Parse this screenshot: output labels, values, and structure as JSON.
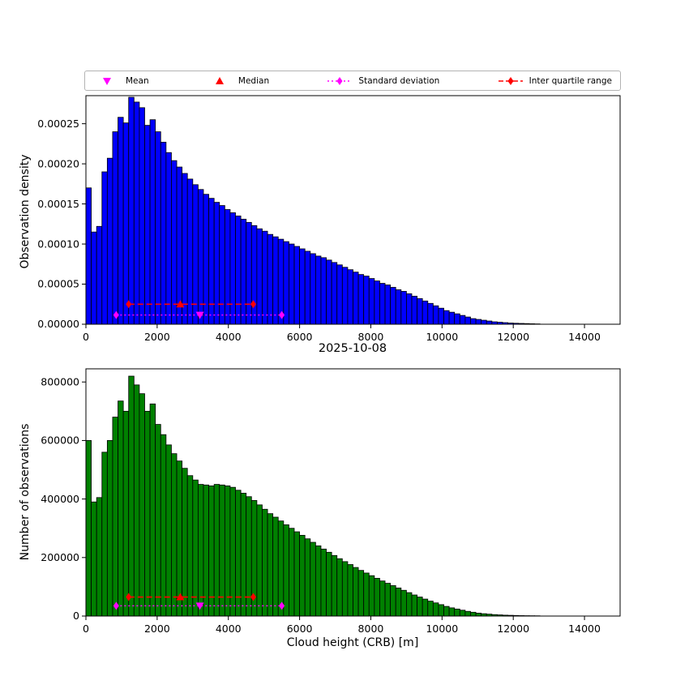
{
  "figure": {
    "title_mid": "2025-10-08",
    "xlabel": "Cloud height (CRB) [m]"
  },
  "legend": {
    "items": [
      {
        "label": "Mean",
        "marker": "triangle-down",
        "color": "#ff00ff",
        "line": "none"
      },
      {
        "label": "Median",
        "marker": "triangle-up",
        "color": "#ff0000",
        "line": "none"
      },
      {
        "label": "Standard deviation",
        "marker": "diamond",
        "color": "#ff00ff",
        "line": "dotted"
      },
      {
        "label": "Inter quartile range",
        "marker": "diamond",
        "color": "#ff0000",
        "line": "dashed"
      }
    ]
  },
  "chart_data": [
    {
      "type": "bar",
      "title": "",
      "ylabel": "Observation density",
      "bar_color": "#0000ff",
      "bin_start": 0,
      "bin_width": 150,
      "value_scale": 1e-06,
      "xlim": [
        0,
        15000
      ],
      "ylim": [
        0,
        0.000285
      ],
      "grid": false,
      "values": [
        170,
        115,
        122,
        190,
        207,
        240,
        258,
        251,
        283,
        277,
        270,
        248,
        255,
        240,
        227,
        214,
        204,
        196,
        188,
        181,
        174,
        168,
        162,
        157,
        152,
        148,
        143,
        139,
        135,
        131,
        127,
        123,
        119,
        116,
        112,
        109,
        106,
        103,
        100,
        97,
        94,
        91,
        88,
        85,
        83,
        80,
        77,
        74,
        71,
        68,
        65,
        62,
        60,
        57,
        54,
        51,
        49,
        46,
        43,
        41,
        38,
        35,
        32,
        29,
        26,
        23,
        20,
        17,
        15,
        13,
        11,
        9,
        7,
        6,
        5,
        4,
        3,
        2.5,
        2,
        1.5,
        1.2,
        1,
        0.8,
        0.6,
        0.4
      ],
      "xticks": [
        {
          "v": 0,
          "label": "0"
        },
        {
          "v": 2000,
          "label": "2000"
        },
        {
          "v": 4000,
          "label": "4000"
        },
        {
          "v": 6000,
          "label": "6000"
        },
        {
          "v": 8000,
          "label": "8000"
        },
        {
          "v": 10000,
          "label": "10000"
        },
        {
          "v": 12000,
          "label": "12000"
        },
        {
          "v": 14000,
          "label": "14000"
        }
      ],
      "yticks": [
        {
          "v": 0,
          "label": "0.00000"
        },
        {
          "v": 5e-05,
          "label": "0.00005"
        },
        {
          "v": 0.0001,
          "label": "0.00010"
        },
        {
          "v": 0.00015,
          "label": "0.00015"
        },
        {
          "v": 0.0002,
          "label": "0.00020"
        },
        {
          "v": 0.00025,
          "label": "0.00025"
        }
      ],
      "stats": {
        "mean_x": 3200,
        "median_x": 2650,
        "q1_x": 1200,
        "q3_x": 4700,
        "std_lo_x": 850,
        "std_hi_x": 5500,
        "iqr_line_y": 2.5e-05,
        "std_line_y": 1.15e-05
      }
    },
    {
      "type": "bar",
      "title": "",
      "ylabel": "Number of observations",
      "xlabel": "Cloud height (CRB) [m]",
      "bar_color": "#008000",
      "bin_start": 0,
      "bin_width": 150,
      "value_scale": 1000,
      "xlim": [
        0,
        15000
      ],
      "ylim": [
        0,
        845000
      ],
      "grid": false,
      "values": [
        600,
        390,
        405,
        560,
        600,
        680,
        735,
        700,
        820,
        790,
        760,
        700,
        725,
        655,
        620,
        585,
        555,
        530,
        505,
        480,
        465,
        450,
        448,
        445,
        450,
        448,
        445,
        440,
        430,
        420,
        408,
        395,
        380,
        365,
        350,
        338,
        325,
        312,
        300,
        288,
        276,
        264,
        252,
        240,
        229,
        218,
        207,
        196,
        186,
        176,
        166,
        156,
        147,
        138,
        129,
        120,
        112,
        104,
        96,
        88,
        80,
        72,
        65,
        58,
        51,
        45,
        39,
        33,
        28,
        24,
        20,
        16,
        13,
        10,
        8,
        6.5,
        5,
        4,
        3,
        2.5,
        2,
        1.5,
        1.2,
        1,
        0.8
      ],
      "xticks": [
        {
          "v": 0,
          "label": "0"
        },
        {
          "v": 2000,
          "label": "2000"
        },
        {
          "v": 4000,
          "label": "4000"
        },
        {
          "v": 6000,
          "label": "6000"
        },
        {
          "v": 8000,
          "label": "8000"
        },
        {
          "v": 10000,
          "label": "10000"
        },
        {
          "v": 12000,
          "label": "12000"
        },
        {
          "v": 14000,
          "label": "14000"
        }
      ],
      "yticks": [
        {
          "v": 0,
          "label": "0"
        },
        {
          "v": 200000,
          "label": "200000"
        },
        {
          "v": 400000,
          "label": "400000"
        },
        {
          "v": 600000,
          "label": "600000"
        },
        {
          "v": 800000,
          "label": "800000"
        }
      ],
      "stats": {
        "mean_x": 3200,
        "median_x": 2650,
        "q1_x": 1200,
        "q3_x": 4700,
        "std_lo_x": 850,
        "std_hi_x": 5500,
        "iqr_line_y": 65000,
        "std_line_y": 35000
      }
    }
  ]
}
